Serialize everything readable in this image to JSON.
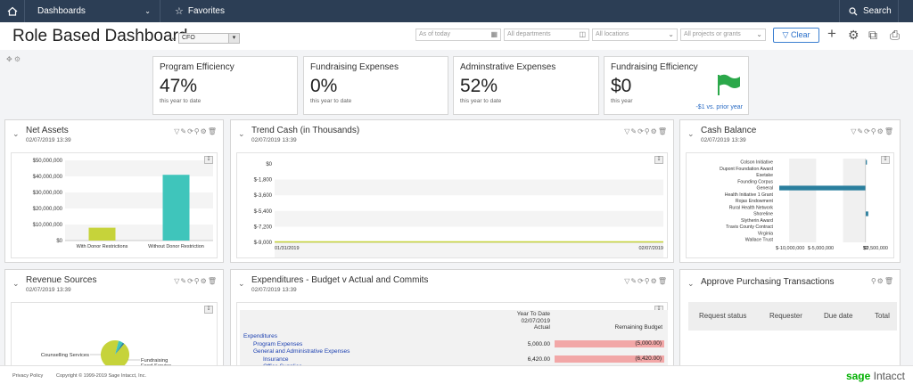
{
  "topbar": {
    "dashboards_label": "Dashboards",
    "favorites_label": "Favorites",
    "search_label": "Search"
  },
  "header": {
    "title": "Role Based Dashboard",
    "role_value": "CFO",
    "as_of_placeholder": "As of today",
    "departments_placeholder": "All departments",
    "locations_placeholder": "All locations",
    "projects_placeholder": "All projects or grants",
    "clear_label": "Clear"
  },
  "kpis": [
    {
      "title": "Program Efficiency",
      "value": "47%",
      "sub": "this year to date"
    },
    {
      "title": "Fundraising Expenses",
      "value": "0%",
      "sub": "this year to date"
    },
    {
      "title": "Adminstrative Expenses",
      "value": "52%",
      "sub": "this year to date"
    },
    {
      "title": "Fundraising Efficiency",
      "value": "$0",
      "sub": "this year",
      "prior": "-$1 vs. prior year"
    }
  ],
  "panels": {
    "net_assets": {
      "title": "Net Assets",
      "date": "02/07/2019 13:39"
    },
    "trend_cash": {
      "title": "Trend Cash (in Thousands)",
      "date": "02/07/2019 13:39"
    },
    "cash_balance": {
      "title": "Cash Balance",
      "date": "02/07/2019 13:39"
    },
    "revenue_sources": {
      "title": "Revenue Sources",
      "date": "02/07/2019 13:39"
    },
    "expenditures": {
      "title": "Expenditures - Budget v Actual and Commits",
      "date": "02/07/2019 13:39"
    },
    "approve_purchasing": {
      "title": "Approve Purchasing Transactions",
      "columns": [
        "Request status",
        "Requester",
        "Due date",
        "Total"
      ]
    }
  },
  "expenditures_table": {
    "col_actual": [
      "Year To Date",
      "02/07/2019",
      "Actual"
    ],
    "col_remaining": "Remaining Budget",
    "rows": [
      {
        "label": "Expenditures",
        "indent": 0,
        "actual": "",
        "remaining": ""
      },
      {
        "label": "Program Expenses",
        "indent": 1,
        "actual": "5,000.00",
        "remaining": "(5,000.00)"
      },
      {
        "label": "General and Administrative Expenses",
        "indent": 1,
        "actual": "",
        "remaining": ""
      },
      {
        "label": "Insurance",
        "indent": 2,
        "actual": "6,420.00",
        "remaining": "(6,420.00)"
      },
      {
        "label": "Office Supplies",
        "indent": 2,
        "actual": "",
        "remaining": ""
      }
    ]
  },
  "chart_data": [
    {
      "type": "bar",
      "title": "Net Assets",
      "categories": [
        "With Donor Restrictions",
        "Without Donor Restriction"
      ],
      "values": [
        8000000,
        41000000
      ],
      "yticks": [
        "$50,000,000",
        "$40,000,000",
        "$30,000,000",
        "$20,000,000",
        "$10,000,000",
        "$0"
      ],
      "ylim": [
        0,
        50000000
      ],
      "colors": [
        "#c6d33a",
        "#3fc5bb"
      ]
    },
    {
      "type": "line",
      "title": "Trend Cash (in Thousands)",
      "x": [
        "01/31/2019",
        "02/07/2019"
      ],
      "values": [
        -8950,
        -8950
      ],
      "yticks": [
        "$0",
        "$-1,800",
        "$-3,600",
        "$-5,400",
        "$-7,200",
        "$-9,000"
      ],
      "ylim": [
        -9000,
        0
      ],
      "color": "#c6d33a"
    },
    {
      "type": "bar",
      "orientation": "horizontal",
      "title": "Cash Balance",
      "categories": [
        "Colson Initiative",
        "Dupont Foundation Award",
        "Esetake",
        "Founding Corpus",
        "General",
        "Health Initiative 1 Grant",
        "Rojas Endowment",
        "Rural Health Network",
        "Shoreline",
        "Slytherin Award",
        "Travis County Contract",
        "Virginia",
        "Wallace Trust"
      ],
      "values": [
        50000,
        0,
        0,
        0,
        -9600000,
        0,
        0,
        0,
        300000,
        0,
        0,
        0,
        0
      ],
      "xticks": [
        "$-10,000,000",
        "$-5,000,000",
        "$0",
        "$2,500,000"
      ],
      "color": "#2a7f9e"
    },
    {
      "type": "pie",
      "title": "Revenue Sources",
      "labels": [
        "Counselling Services",
        "Fundraising",
        "Food Service"
      ],
      "values": [
        93,
        5,
        2
      ],
      "colors": [
        "#c6d33a",
        "#3fc5bb",
        "#2a7f9e"
      ]
    }
  ],
  "footer": {
    "privacy": "Privacy Policy",
    "copyright": "Copyright © 1999-2019 Sage Intacct, Inc.",
    "brand_sage": "sage",
    "brand_intacct": "Intacct"
  }
}
